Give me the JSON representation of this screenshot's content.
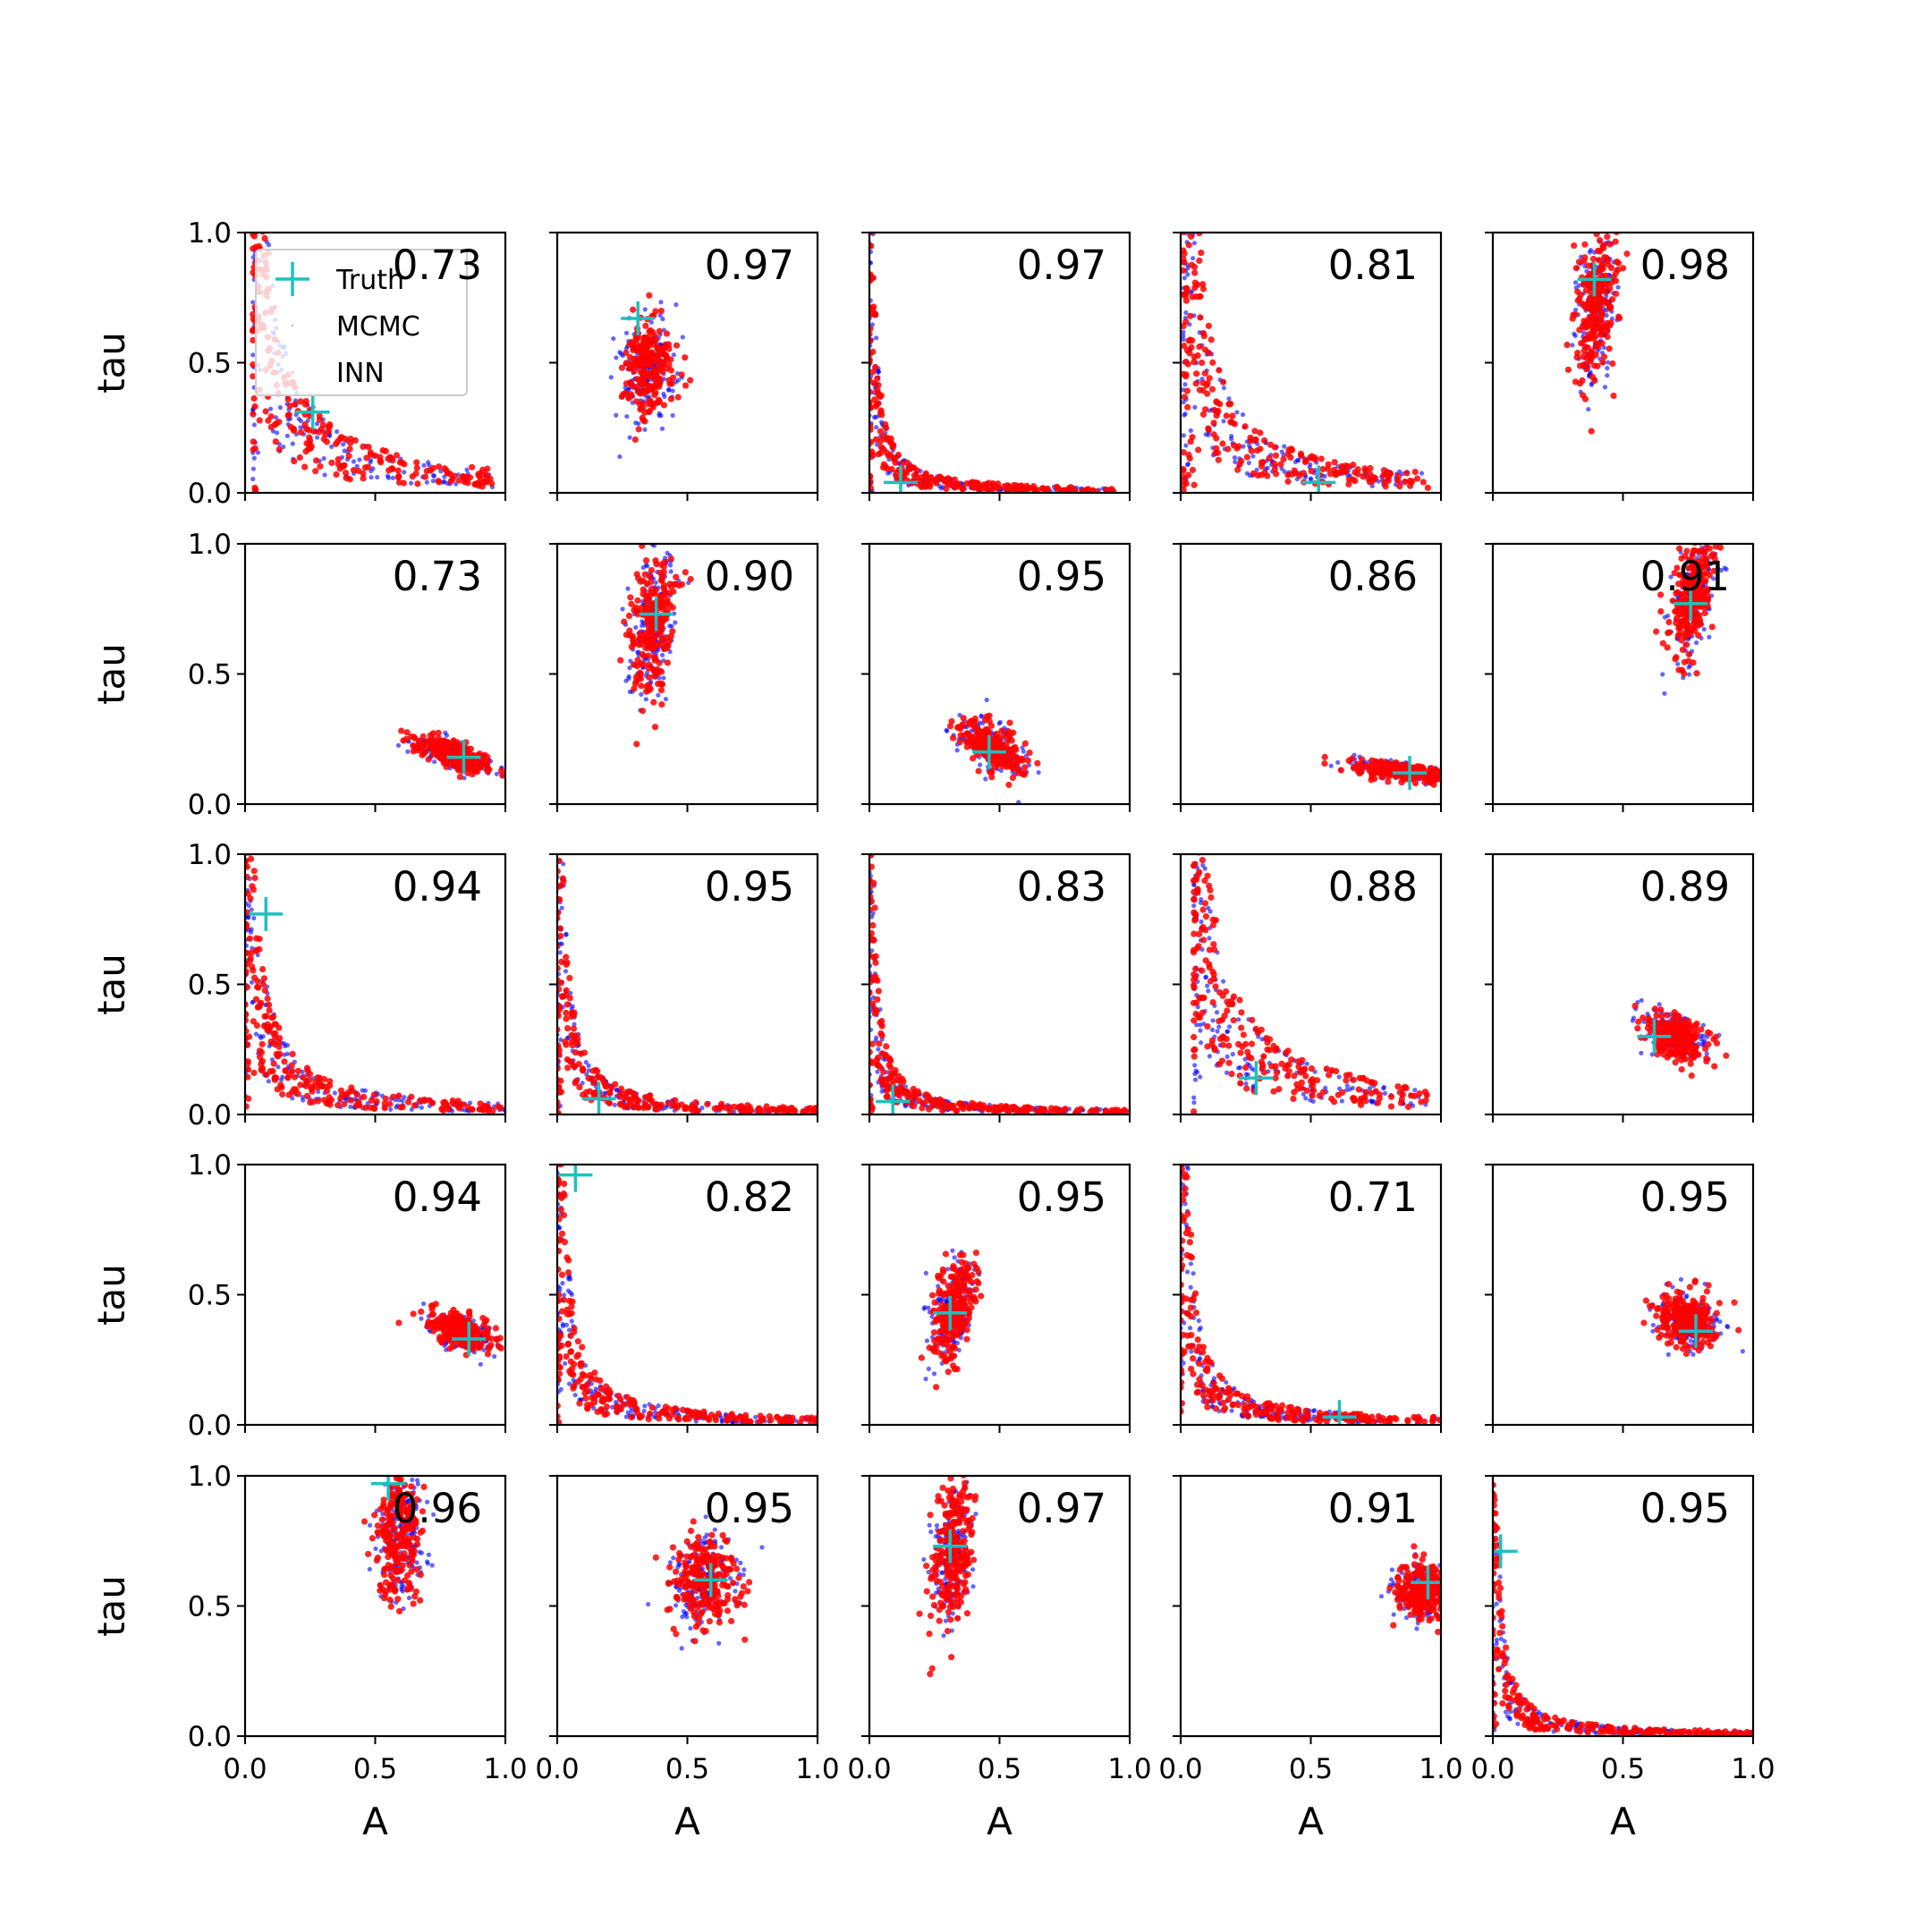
{
  "colors": {
    "truth": "#1fbfbf",
    "mcmc": "#0000ff",
    "inn": "#ff0000",
    "axes": "#000000",
    "legend_border": "#cccccc"
  },
  "chart_data": {
    "type": "scatter",
    "layout": "5x5 grid of subplots",
    "xlabel": "A",
    "ylabel": "tau",
    "xlim": [
      0.0,
      1.0
    ],
    "ylim": [
      0.0,
      1.0
    ],
    "x_ticks": [
      "0.0",
      "0.5",
      "1.0"
    ],
    "y_ticks": [
      "0.0",
      "0.5",
      "1.0"
    ],
    "legend": {
      "placement": "upper-left of first subplot",
      "entries": [
        {
          "label": "Truth",
          "marker": "plus",
          "color": "#1fbfbf"
        },
        {
          "label": "MCMC",
          "marker": "dot",
          "color": "#0000ff"
        },
        {
          "label": "INN",
          "marker": "dot",
          "color": "#ff0000"
        }
      ]
    },
    "panels": [
      {
        "row": 0,
        "col": 0,
        "score": "0.73",
        "truth": [
          0.26,
          0.31
        ],
        "shape": "curve",
        "inv_k": 0.06,
        "x_range": [
          0.03,
          0.95
        ]
      },
      {
        "row": 0,
        "col": 1,
        "score": "0.97",
        "truth": [
          0.31,
          0.67
        ],
        "shape": "blob",
        "center": [
          0.35,
          0.48
        ],
        "spread": [
          0.09,
          0.19
        ],
        "tilt": -0.35
      },
      {
        "row": 0,
        "col": 2,
        "score": "0.97",
        "truth": [
          0.12,
          0.04
        ],
        "shape": "curve",
        "inv_k": 0.012,
        "x_range": [
          0.0,
          0.95
        ]
      },
      {
        "row": 0,
        "col": 3,
        "score": "0.81",
        "truth": [
          0.53,
          0.04
        ],
        "shape": "curve",
        "inv_k": 0.05,
        "x_range": [
          0.01,
          0.95
        ]
      },
      {
        "row": 0,
        "col": 4,
        "score": "0.98",
        "truth": [
          0.39,
          0.82
        ],
        "shape": "blob",
        "center": [
          0.4,
          0.72
        ],
        "spread": [
          0.07,
          0.28
        ],
        "tilt": -0.25
      },
      {
        "row": 1,
        "col": 0,
        "score": "0.73",
        "truth": [
          0.84,
          0.18
        ],
        "shape": "blob",
        "center": [
          0.8,
          0.19
        ],
        "spread": [
          0.16,
          0.05
        ],
        "tilt": -0.5
      },
      {
        "row": 1,
        "col": 1,
        "score": "0.90",
        "truth": [
          0.38,
          0.73
        ],
        "shape": "blob",
        "center": [
          0.37,
          0.7
        ],
        "spread": [
          0.08,
          0.28
        ],
        "tilt": -0.3
      },
      {
        "row": 1,
        "col": 2,
        "score": "0.95",
        "truth": [
          0.46,
          0.2
        ],
        "shape": "blob",
        "center": [
          0.47,
          0.22
        ],
        "spread": [
          0.17,
          0.1
        ],
        "tilt": -0.85
      },
      {
        "row": 1,
        "col": 3,
        "score": "0.86",
        "truth": [
          0.88,
          0.12
        ],
        "shape": "blob",
        "center": [
          0.83,
          0.13
        ],
        "spread": [
          0.15,
          0.03
        ],
        "tilt": -0.2
      },
      {
        "row": 1,
        "col": 4,
        "score": "0.91",
        "truth": [
          0.76,
          0.77
        ],
        "shape": "blob",
        "center": [
          0.77,
          0.8
        ],
        "spread": [
          0.07,
          0.24
        ],
        "tilt": -0.5
      },
      {
        "row": 2,
        "col": 0,
        "score": "0.94",
        "truth": [
          0.08,
          0.77
        ],
        "shape": "curve",
        "inv_k": 0.03,
        "x_range": [
          0.0,
          1.0
        ]
      },
      {
        "row": 2,
        "col": 1,
        "score": "0.95",
        "truth": [
          0.16,
          0.06
        ],
        "shape": "curve",
        "inv_k": 0.018,
        "x_range": [
          0.0,
          1.0
        ]
      },
      {
        "row": 2,
        "col": 2,
        "score": "0.83",
        "truth": [
          0.09,
          0.05
        ],
        "shape": "curve",
        "inv_k": 0.012,
        "x_range": [
          0.0,
          1.0
        ]
      },
      {
        "row": 2,
        "col": 3,
        "score": "0.88",
        "truth": [
          0.29,
          0.14
        ],
        "shape": "curve",
        "inv_k": 0.07,
        "x_range": [
          0.05,
          0.95
        ]
      },
      {
        "row": 2,
        "col": 4,
        "score": "0.89",
        "truth": [
          0.62,
          0.3
        ],
        "shape": "blob",
        "center": [
          0.7,
          0.3
        ],
        "spread": [
          0.13,
          0.08
        ],
        "tilt": -0.6
      },
      {
        "row": 3,
        "col": 0,
        "score": "0.94",
        "truth": [
          0.86,
          0.33
        ],
        "shape": "blob",
        "center": [
          0.83,
          0.36
        ],
        "spread": [
          0.14,
          0.06
        ],
        "tilt": -0.6
      },
      {
        "row": 3,
        "col": 1,
        "score": "0.82",
        "truth": [
          0.07,
          0.96
        ],
        "shape": "curve",
        "inv_k": 0.02,
        "x_range": [
          0.0,
          1.0
        ]
      },
      {
        "row": 3,
        "col": 2,
        "score": "0.95",
        "truth": [
          0.31,
          0.43
        ],
        "shape": "blob",
        "center": [
          0.32,
          0.44
        ],
        "spread": [
          0.08,
          0.22
        ],
        "tilt": -0.6
      },
      {
        "row": 3,
        "col": 3,
        "score": "0.71",
        "truth": [
          0.61,
          0.03
        ],
        "shape": "curve",
        "inv_k": 0.02,
        "x_range": [
          0.0,
          1.0
        ]
      },
      {
        "row": 3,
        "col": 4,
        "score": "0.95",
        "truth": [
          0.78,
          0.36
        ],
        "shape": "blob",
        "center": [
          0.75,
          0.4
        ],
        "spread": [
          0.11,
          0.09
        ],
        "tilt": -0.3
      },
      {
        "row": 4,
        "col": 0,
        "score": "0.96",
        "truth": [
          0.55,
          0.97
        ],
        "shape": "blob",
        "center": [
          0.59,
          0.78
        ],
        "spread": [
          0.08,
          0.24
        ],
        "tilt": -0.2
      },
      {
        "row": 4,
        "col": 1,
        "score": "0.95",
        "truth": [
          0.59,
          0.6
        ],
        "shape": "blob",
        "center": [
          0.57,
          0.6
        ],
        "spread": [
          0.12,
          0.16
        ],
        "tilt": -0.3
      },
      {
        "row": 4,
        "col": 2,
        "score": "0.97",
        "truth": [
          0.31,
          0.73
        ],
        "shape": "blob",
        "center": [
          0.32,
          0.72
        ],
        "spread": [
          0.07,
          0.28
        ],
        "tilt": -0.2
      },
      {
        "row": 4,
        "col": 3,
        "score": "0.91",
        "truth": [
          0.95,
          0.59
        ],
        "shape": "blob",
        "center": [
          0.93,
          0.55
        ],
        "spread": [
          0.1,
          0.1
        ],
        "tilt": -0.3
      },
      {
        "row": 4,
        "col": 4,
        "score": "0.95",
        "truth": [
          0.03,
          0.71
        ],
        "shape": "curve",
        "inv_k": 0.012,
        "x_range": [
          0.0,
          1.0
        ]
      }
    ]
  }
}
